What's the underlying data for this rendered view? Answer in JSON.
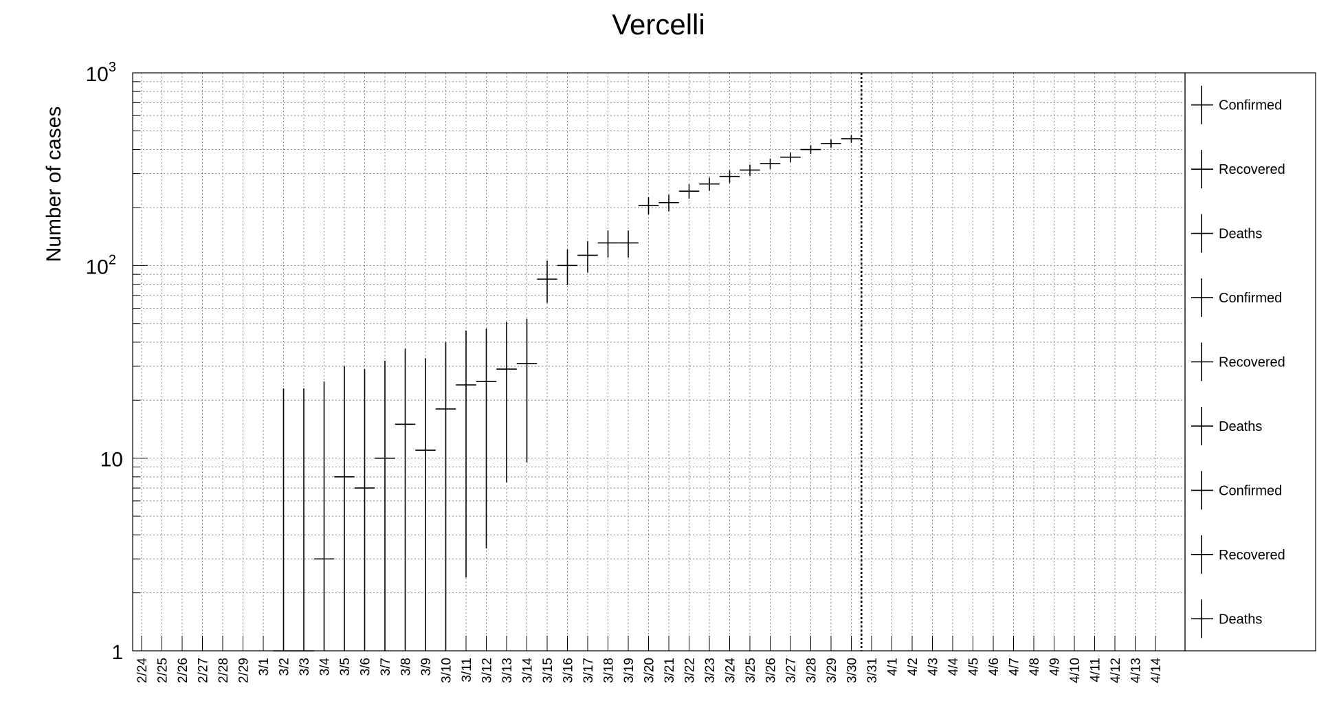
{
  "chart_data": {
    "type": "scatter",
    "title": "Vercelli",
    "ylabel": "Number of cases",
    "xlabel": "",
    "y_scale": "log",
    "ylim": [
      1,
      1000
    ],
    "y_tick_labels": [
      {
        "value": 1,
        "base": "1",
        "exp": ""
      },
      {
        "value": 10,
        "base": "10",
        "exp": ""
      },
      {
        "value": 100,
        "base": "10",
        "exp": "2"
      },
      {
        "value": 1000,
        "base": "10",
        "exp": "3"
      }
    ],
    "grid": true,
    "categories": [
      "2/24",
      "2/25",
      "2/26",
      "2/27",
      "2/28",
      "2/29",
      "3/1",
      "3/2",
      "3/3",
      "3/4",
      "3/5",
      "3/6",
      "3/7",
      "3/8",
      "3/9",
      "3/10",
      "3/11",
      "3/12",
      "3/13",
      "3/14",
      "3/15",
      "3/16",
      "3/17",
      "3/18",
      "3/19",
      "3/20",
      "3/21",
      "3/22",
      "3/23",
      "3/24",
      "3/25",
      "3/26",
      "3/27",
      "3/28",
      "3/29",
      "3/30",
      "3/31",
      "4/1",
      "4/2",
      "4/3",
      "4/4",
      "4/5",
      "4/6",
      "4/7",
      "4/8",
      "4/9",
      "4/10",
      "4/11",
      "4/12",
      "4/13",
      "4/14"
    ],
    "vertical_marker": "3/30",
    "points": [
      {
        "x": "3/2",
        "y": 1,
        "err_low": 1,
        "err_high": 23
      },
      {
        "x": "3/3",
        "y": 1,
        "err_low": 1,
        "err_high": 23
      },
      {
        "x": "3/4",
        "y": 3,
        "err_low": 1,
        "err_high": 25
      },
      {
        "x": "3/5",
        "y": 8,
        "err_low": 1,
        "err_high": 30
      },
      {
        "x": "3/6",
        "y": 7,
        "err_low": 1,
        "err_high": 29
      },
      {
        "x": "3/7",
        "y": 10,
        "err_low": 1,
        "err_high": 32
      },
      {
        "x": "3/8",
        "y": 15,
        "err_low": 1,
        "err_high": 37
      },
      {
        "x": "3/9",
        "y": 11,
        "err_low": 1,
        "err_high": 33
      },
      {
        "x": "3/10",
        "y": 18,
        "err_low": 1,
        "err_high": 40
      },
      {
        "x": "3/11",
        "y": 24,
        "err_low": 2.4,
        "err_high": 46
      },
      {
        "x": "3/12",
        "y": 25,
        "err_low": 3.4,
        "err_high": 47
      },
      {
        "x": "3/13",
        "y": 29,
        "err_low": 7.5,
        "err_high": 51
      },
      {
        "x": "3/14",
        "y": 31,
        "err_low": 9.5,
        "err_high": 53
      },
      {
        "x": "3/15",
        "y": 85,
        "err_low": 64,
        "err_high": 106
      },
      {
        "x": "3/16",
        "y": 100,
        "err_low": 79,
        "err_high": 121
      },
      {
        "x": "3/17",
        "y": 113,
        "err_low": 92,
        "err_high": 134
      },
      {
        "x": "3/18",
        "y": 131,
        "err_low": 110,
        "err_high": 152
      },
      {
        "x": "3/19",
        "y": 131,
        "err_low": 110,
        "err_high": 152
      },
      {
        "x": "3/20",
        "y": 205,
        "err_low": 184,
        "err_high": 226
      },
      {
        "x": "3/21",
        "y": 212,
        "err_low": 191,
        "err_high": 233
      },
      {
        "x": "3/22",
        "y": 243,
        "err_low": 222,
        "err_high": 264
      },
      {
        "x": "3/23",
        "y": 265,
        "err_low": 244,
        "err_high": 286
      },
      {
        "x": "3/24",
        "y": 290,
        "err_low": 269,
        "err_high": 311
      },
      {
        "x": "3/25",
        "y": 313,
        "err_low": 292,
        "err_high": 334
      },
      {
        "x": "3/26",
        "y": 338,
        "err_low": 317,
        "err_high": 359
      },
      {
        "x": "3/27",
        "y": 365,
        "err_low": 344,
        "err_high": 386
      },
      {
        "x": "3/28",
        "y": 400,
        "err_low": 379,
        "err_high": 421
      },
      {
        "x": "3/29",
        "y": 430,
        "err_low": 409,
        "err_high": 451
      },
      {
        "x": "3/30",
        "y": 455,
        "err_low": 434,
        "err_high": 476
      }
    ],
    "legend": {
      "placement": "right",
      "entries": [
        "Confirmed",
        "Recovered",
        "Deaths",
        "Confirmed",
        "Recovered",
        "Deaths",
        "Confirmed",
        "Recovered",
        "Deaths"
      ]
    }
  }
}
